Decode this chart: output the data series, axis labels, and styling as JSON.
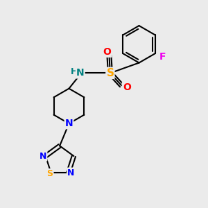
{
  "bg_color": "#ebebeb",
  "bond_color": "#000000",
  "bond_width": 1.5,
  "atom_colors": {
    "N": "#0000ff",
    "O": "#ff0000",
    "S_sulfonyl": "#ffa500",
    "S_thia": "#ffa500",
    "F": "#ee00ee",
    "H": "#008080",
    "N_NH": "#008080"
  },
  "font_size": 10
}
